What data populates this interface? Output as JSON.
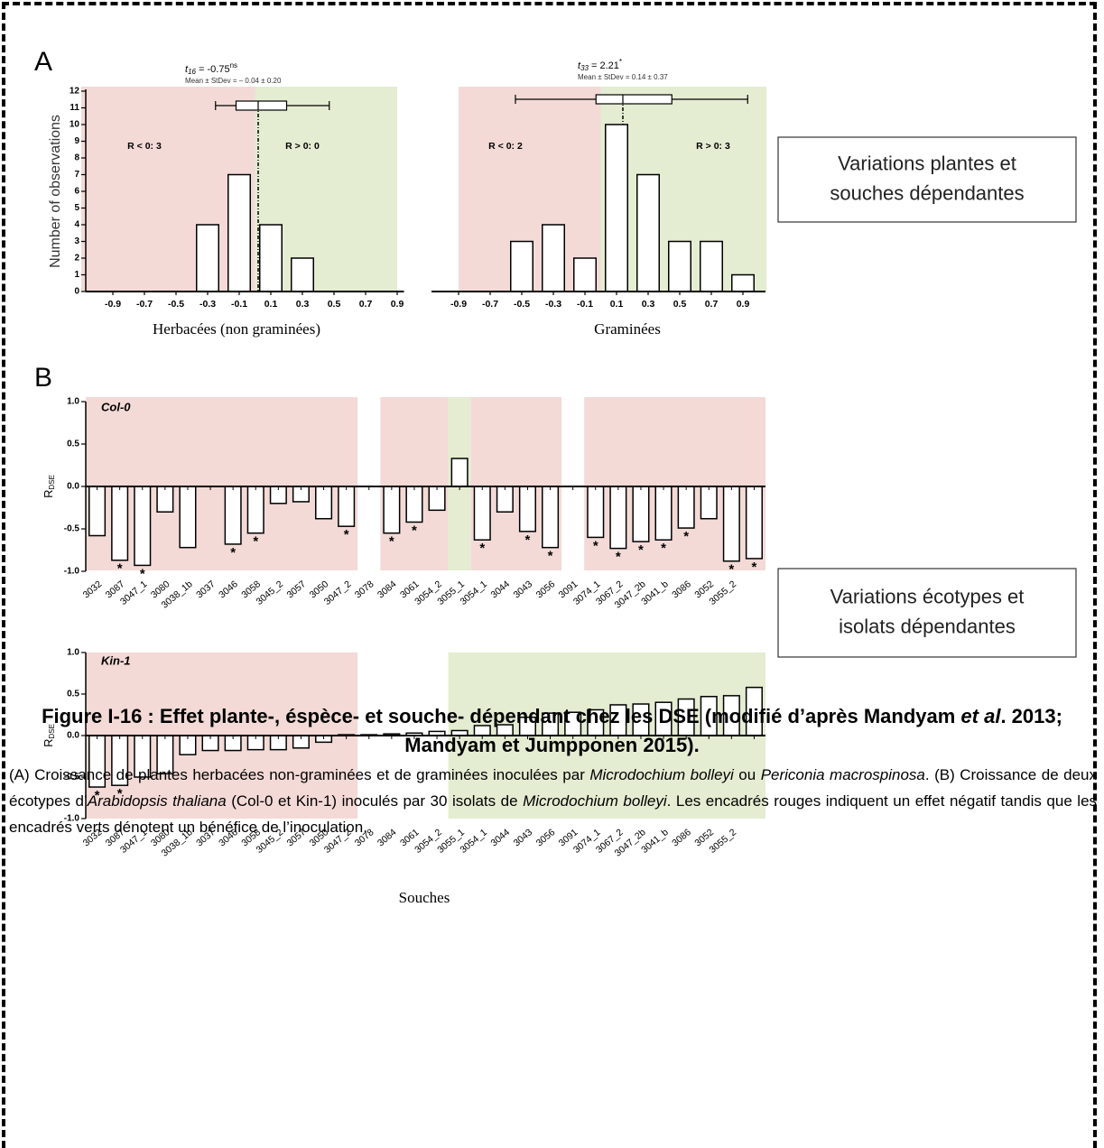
{
  "panels": [
    "A",
    "B"
  ],
  "boxes": [
    {
      "lines": [
        "Variations plantes et",
        "souches dépendantes"
      ]
    },
    {
      "lines": [
        "Variations écotypes et",
        "isolats dépendantes"
      ]
    }
  ],
  "chart_data": [
    {
      "type": "histogram",
      "bins": [
        -1.0,
        -0.8,
        -0.6,
        -0.4,
        -0.2,
        0,
        0.2,
        0.4,
        0.6,
        0.8,
        1.0
      ],
      "values": [
        0,
        0,
        0,
        4,
        7,
        4,
        2,
        0,
        0,
        0
      ],
      "color": "#ffffff",
      "xlim": [
        -1.1,
        1.0
      ],
      "xticks": [
        -0.9,
        -0.7,
        -0.5,
        -0.3,
        -0.1,
        0.1,
        0.3,
        0.5,
        0.7,
        0.9
      ],
      "ylim": [
        0,
        12
      ],
      "yticks": [
        0,
        1,
        2,
        3,
        4,
        5,
        6,
        7,
        8,
        9,
        10,
        11,
        12
      ],
      "ylabel": "Number of observations",
      "xlabel": "Herbacées (non graminées)",
      "stat": {
        "symbol": "t",
        "df": "16",
        "text": " = -0.75",
        "sup": "ns"
      },
      "mean_sd": "Mean ± StDev = – 0.04 ± 0.20",
      "boxplot": {
        "low": -0.25,
        "q1": -0.12,
        "median": 0.02,
        "q3": 0.2,
        "high": 0.47
      },
      "regions": [
        {
          "from": -1.1,
          "to": 0,
          "color": "#f3dad7"
        },
        {
          "from": 0,
          "to": 0.9,
          "color": "#e4ecd2"
        }
      ],
      "region_labels": [
        "R < 0: 3",
        "R > 0: 0"
      ]
    },
    {
      "type": "histogram",
      "bins": [
        -1.0,
        -0.8,
        -0.6,
        -0.4,
        -0.2,
        0,
        0.2,
        0.4,
        0.6,
        0.8,
        1.0
      ],
      "values": [
        0,
        0,
        3,
        4,
        2,
        10,
        7,
        3,
        3,
        1
      ],
      "color": "#ffffff",
      "xlim": [
        -1.1,
        1.1
      ],
      "xticks": [
        -0.9,
        -0.7,
        -0.5,
        -0.3,
        -0.1,
        0.1,
        0.3,
        0.5,
        0.7,
        0.9
      ],
      "ylim": [
        0,
        12
      ],
      "xlabel": "Graminées",
      "stat": {
        "symbol": "t",
        "df": "33",
        "text": " = 2.21",
        "sup": "*"
      },
      "mean_sd": "Mean ± StDev = 0.14 ± 0.37",
      "boxplot": {
        "low": -0.54,
        "q1": -0.03,
        "median": 0.14,
        "q3": 0.45,
        "high": 0.93
      },
      "regions": [
        {
          "from": -0.9,
          "to": 0,
          "color": "#f3dad7"
        },
        {
          "from": 0,
          "to": 1.05,
          "color": "#e4ecd2"
        }
      ],
      "region_labels": [
        "R < 0: 2",
        "R > 0: 3"
      ]
    },
    {
      "type": "bar",
      "title": "Col-0",
      "ylabel": "R",
      "ylabel_sub": "DSE",
      "categories": [
        "3032",
        "3087",
        "3047_1",
        "3080",
        "3038_1b",
        "3037",
        "3046",
        "3058",
        "3045_2",
        "3057",
        "3050",
        "3047_2",
        "3078",
        "3084",
        "3061",
        "3054_2",
        "3055_1",
        "3054_1",
        "3044",
        "3043",
        "3056",
        "3091",
        "3074_1",
        "3067_2",
        "3047_2b",
        "3041_b",
        "3086",
        "3052",
        "3055_2",
        null
      ],
      "values": [
        -0.58,
        -0.87,
        -0.93,
        -0.3,
        -0.72,
        null,
        -0.68,
        -0.55,
        -0.2,
        -0.18,
        -0.38,
        -0.47,
        null,
        -0.55,
        -0.42,
        -0.28,
        0.33,
        -0.63,
        -0.3,
        -0.53,
        -0.72,
        null,
        -0.6,
        -0.73,
        -0.65,
        -0.63,
        -0.49,
        -0.38,
        -0.88,
        -0.85
      ],
      "stars": [
        null,
        "*",
        "*",
        null,
        null,
        null,
        "*",
        "*",
        null,
        null,
        null,
        "*",
        null,
        "*",
        "*",
        null,
        null,
        "*",
        null,
        "*",
        "*",
        null,
        "*",
        "*",
        "*",
        "*",
        "*",
        null,
        "*",
        "*"
      ],
      "color": "#ffffff",
      "ylim": [
        -1,
        1
      ],
      "yticks": [
        {
          "value": -1,
          "label": "-1.0"
        },
        -0.5,
        {
          "value": 0,
          "label": "0.0"
        },
        0.5,
        {
          "value": 1,
          "label": "1.0"
        }
      ],
      "regions": [
        {
          "from": 0,
          "to": 11,
          "color": "#f3dad7"
        },
        {
          "from": 13,
          "to": 15,
          "color": "#f3dad7"
        },
        {
          "from": 16,
          "to": 16,
          "color": "#e4ecd2"
        },
        {
          "from": 17,
          "to": 20,
          "color": "#f3dad7"
        },
        {
          "from": 22,
          "to": 29,
          "color": "#f3dad7"
        }
      ]
    },
    {
      "type": "bar",
      "title": "Kin-1",
      "ylabel": "R",
      "ylabel_sub": "DSE",
      "xlabel": "Souches",
      "categories": [
        "3032",
        "3087",
        "3047_1",
        "3080",
        "3038_1b",
        "3037",
        "3046",
        "3058",
        "3045_2",
        "3057",
        "3050",
        "3047_2",
        "3078",
        "3084",
        "3061",
        "3054_2",
        "3055_1",
        "3054_1",
        "3044",
        "3043",
        "3056",
        "3091",
        "3074_1",
        "3067_2",
        "3047_2b",
        "3041_b",
        "3086",
        "3052",
        "3055_2",
        null
      ],
      "values": [
        -0.62,
        -0.6,
        -0.5,
        -0.46,
        -0.23,
        -0.18,
        -0.18,
        -0.17,
        -0.17,
        -0.15,
        -0.08,
        0.01,
        0.01,
        0.02,
        0.03,
        0.05,
        0.06,
        0.12,
        0.13,
        0.22,
        0.27,
        0.28,
        0.31,
        0.37,
        0.38,
        0.4,
        0.44,
        0.47,
        0.48,
        0.58
      ],
      "stars": [
        "*",
        "*",
        null,
        null,
        null,
        null,
        null,
        null,
        null,
        null,
        null,
        null,
        null,
        null,
        null,
        null,
        null,
        null,
        null,
        null,
        null,
        null,
        null,
        null,
        null,
        null,
        null,
        null,
        null,
        null
      ],
      "color": "#ffffff",
      "ylim": [
        -1,
        1
      ],
      "yticks": [
        {
          "value": -1,
          "label": "-1.0"
        },
        -0.5,
        {
          "value": 0,
          "label": "0.0"
        },
        0.5,
        {
          "value": 1,
          "label": "1.0"
        }
      ],
      "regions": [
        {
          "from": 0,
          "to": 11,
          "color": "#f3dad7"
        },
        {
          "from": 16,
          "to": 29,
          "color": "#e4ecd2"
        }
      ]
    }
  ],
  "caption": {
    "title": [
      {
        "text": "Figure I-16 : Effet plante-, éspèce- et souche- dépendant chez les DSE (modifié d’après Mandyam "
      },
      {
        "text": "et al",
        "italic": true
      },
      {
        "text": ". 2013; Mandyam et Jumpponen 2015)."
      }
    ],
    "body": [
      {
        "text": "(A) Croissance de plantes herbacées non-graminées et de graminées inoculées par "
      },
      {
        "text": "Microdochium bolleyi",
        "italic": true
      },
      {
        "text": " ou "
      },
      {
        "text": "Periconia macrospinosa",
        "italic": true
      },
      {
        "text": ". (B) Croissance de deux écotypes d’"
      },
      {
        "text": "Arabidopsis thaliana",
        "italic": true
      },
      {
        "text": " (Col-0 et Kin-1) inoculés par 30 isolats de "
      },
      {
        "text": "Microdochium bolleyi",
        "italic": true
      },
      {
        "text": ". Les encadrés rouges indiquent un effet négatif tandis que les encadrés verts dénotent un bénéfice de l’inoculation."
      }
    ]
  }
}
